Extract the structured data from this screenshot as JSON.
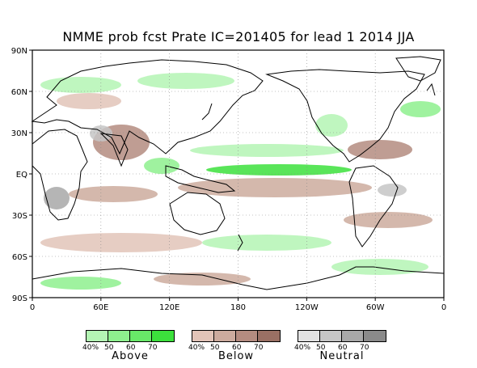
{
  "title": "NMME prob fcst Prate IC=201405 for lead 1 2014 JJA",
  "lat_labels": [
    "90N",
    "60N",
    "30N",
    "EQ",
    "30S",
    "60S",
    "90S"
  ],
  "lon_labels": [
    "0",
    "60E",
    "120E",
    "180",
    "120W",
    "60W",
    "0"
  ],
  "legend": {
    "above": {
      "name": "Above",
      "ticks": [
        "40%",
        "50",
        "60",
        "70"
      ],
      "colors": [
        "#b4f5b4",
        "#8ef08e",
        "#68e868",
        "#3ce03c"
      ]
    },
    "below": {
      "name": "Below",
      "ticks": [
        "40%",
        "50",
        "60",
        "70"
      ],
      "colors": [
        "#e2c4b8",
        "#ccab9e",
        "#b48c80",
        "#9a7064"
      ]
    },
    "neutral": {
      "name": "Neutral",
      "ticks": [
        "40%",
        "50",
        "60",
        "70"
      ],
      "colors": [
        "#e2e2e2",
        "#c6c6c6",
        "#a8a8a8",
        "#8a8a8a"
      ]
    }
  },
  "colors": {
    "border": "#000000",
    "coast": "#000000",
    "grid": "#888888"
  }
}
